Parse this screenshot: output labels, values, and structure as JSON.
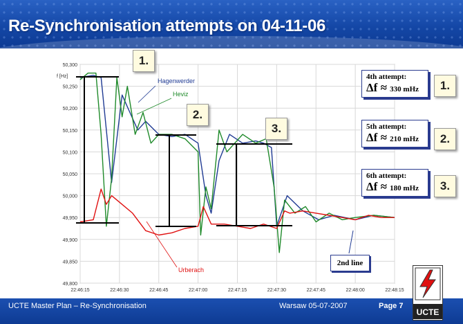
{
  "slide": {
    "title": "Re-Synchronisation attempts on 04-11-06",
    "footer_left": "UCTE Master Plan – Re-Synchronisation",
    "footer_center": "Warsaw 05-07-2007",
    "footer_right": "Page 7",
    "logo_text": "UCTE",
    "colors": {
      "header": "#1447a6",
      "footer": "#0e3b93",
      "title": "#ffffff"
    }
  },
  "annotations": [
    {
      "head": "4th attempt:",
      "value": "Δf ≈",
      "unit": "330 mHz",
      "badge": "1."
    },
    {
      "head": "5th attempt:",
      "value": "Δf ≈",
      "unit": "210 mHz",
      "badge": "2."
    },
    {
      "head": "6th attempt:",
      "value": "Δf ≈",
      "unit": "180 mHz",
      "badge": "3."
    }
  ],
  "chart_badges": [
    "1.",
    "2.",
    "3."
  ],
  "second_line_label": "2nd line",
  "chart_data": {
    "type": "line",
    "ylabel": "f [Hz]",
    "ylim": [
      49.8,
      50.3
    ],
    "xlim": [
      "22:46:15",
      "22:48:15"
    ],
    "yticks": [
      50.3,
      50.25,
      50.2,
      50.15,
      50.1,
      50.05,
      50.0,
      49.95,
      49.9,
      49.85,
      49.8
    ],
    "ytick_labels": [
      "50,300",
      "50,250",
      "50,200",
      "50,150",
      "50,100",
      "50,050",
      "50,000",
      "49,950",
      "49,900",
      "49,850",
      "49,800"
    ],
    "xtick_labels": [
      "22:46:15",
      "22:46:30",
      "22:46:45",
      "22:47:00",
      "22:47:15",
      "22:47:30",
      "22:47:45",
      "22:48:00",
      "22:48:15"
    ],
    "grid": true,
    "series": [
      {
        "name": "Hagenwerder",
        "color": "#1f3a93",
        "x": [
          "22:46:15",
          "22:46:20",
          "22:46:23",
          "22:46:25",
          "22:46:27",
          "22:46:31",
          "22:46:34",
          "22:46:37",
          "22:46:40",
          "22:46:45",
          "22:46:50",
          "22:46:55",
          "22:47:00",
          "22:47:03",
          "22:47:05",
          "22:47:08",
          "22:47:12",
          "22:47:17",
          "22:47:22",
          "22:47:25",
          "22:47:28",
          "22:47:30",
          "22:47:34",
          "22:47:40",
          "22:47:46",
          "22:47:52",
          "22:48:00",
          "22:48:07",
          "22:48:15"
        ],
        "y": [
          50.27,
          50.275,
          50.27,
          50.15,
          50.03,
          50.23,
          50.19,
          50.15,
          50.17,
          50.14,
          50.135,
          50.14,
          50.12,
          50.0,
          49.96,
          50.08,
          50.14,
          50.12,
          50.125,
          50.12,
          50.11,
          49.93,
          50.0,
          49.965,
          49.945,
          49.955,
          49.945,
          49.955,
          49.95
        ]
      },
      {
        "name": "Heviz",
        "color": "#1f8a2a",
        "x": [
          "22:46:15",
          "22:46:18",
          "22:46:21",
          "22:46:23",
          "22:46:25",
          "22:46:27",
          "22:46:29",
          "22:46:31",
          "22:46:33",
          "22:46:36",
          "22:46:39",
          "22:46:42",
          "22:46:45",
          "22:46:50",
          "22:46:55",
          "22:47:00",
          "22:47:01",
          "22:47:03",
          "22:47:05",
          "22:47:08",
          "22:47:11",
          "22:47:14",
          "22:47:17",
          "22:47:22",
          "22:47:26",
          "22:47:29",
          "22:47:31",
          "22:47:33",
          "22:47:37",
          "22:47:41",
          "22:47:45",
          "22:47:50",
          "22:47:55",
          "22:48:00",
          "22:48:07",
          "22:48:15"
        ],
        "y": [
          50.265,
          50.28,
          50.28,
          50.14,
          49.93,
          50.04,
          50.27,
          50.18,
          50.25,
          50.14,
          50.19,
          50.12,
          50.14,
          50.14,
          50.13,
          50.1,
          49.91,
          50.02,
          49.97,
          50.15,
          50.1,
          50.12,
          50.14,
          50.12,
          50.13,
          50.02,
          49.87,
          49.99,
          49.96,
          49.975,
          49.94,
          49.96,
          49.945,
          49.95,
          49.955,
          49.95
        ]
      },
      {
        "name": "Urberach",
        "color": "#e01010",
        "x": [
          "22:46:15",
          "22:46:20",
          "22:46:23",
          "22:46:25",
          "22:46:27",
          "22:46:30",
          "22:46:35",
          "22:46:40",
          "22:46:45",
          "22:46:50",
          "22:46:55",
          "22:47:00",
          "22:47:02",
          "22:47:05",
          "22:47:10",
          "22:47:15",
          "22:47:20",
          "22:47:25",
          "22:47:30",
          "22:47:33",
          "22:47:35",
          "22:47:40",
          "22:47:45",
          "22:47:50",
          "22:47:55",
          "22:48:00",
          "22:48:05",
          "22:48:10",
          "22:48:15"
        ],
        "y": [
          49.94,
          49.945,
          50.015,
          49.98,
          50.0,
          49.985,
          49.96,
          49.92,
          49.91,
          49.915,
          49.925,
          49.93,
          49.975,
          49.935,
          49.935,
          49.93,
          49.925,
          49.935,
          49.925,
          49.965,
          49.96,
          49.965,
          49.96,
          49.955,
          49.95,
          49.945,
          49.955,
          49.95,
          49.95
        ]
      }
    ]
  }
}
